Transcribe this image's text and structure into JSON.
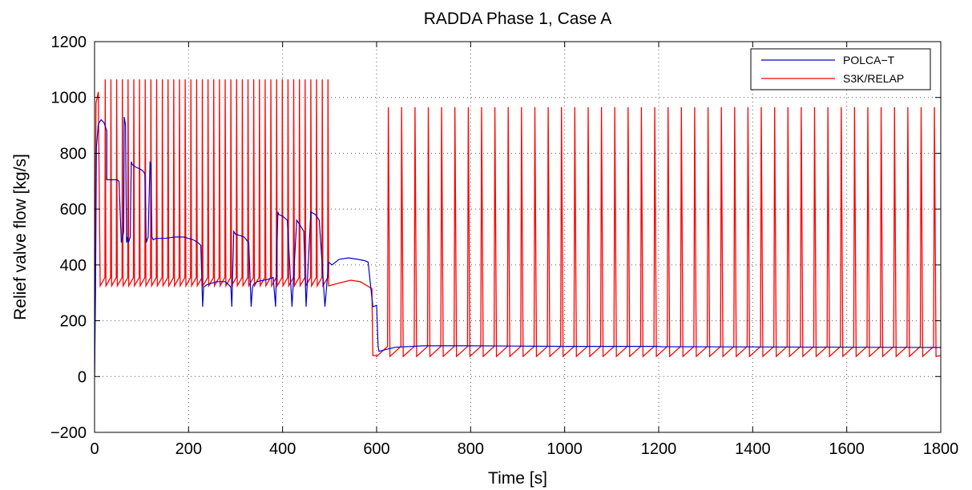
{
  "chart_data": {
    "type": "line",
    "title": "RADDA Phase 1, Case A",
    "xlabel": "Time [s]",
    "ylabel": "Relief valve flow [kg/s]",
    "xlim": [
      0,
      1800
    ],
    "ylim": [
      -200,
      1200
    ],
    "xticks": [
      0,
      200,
      400,
      600,
      800,
      1000,
      1200,
      1400,
      1600,
      1800
    ],
    "yticks": [
      -200,
      0,
      200,
      400,
      600,
      800,
      1000,
      1200
    ],
    "xtick_labels": [
      "0",
      "200",
      "400",
      "600",
      "800",
      "1000",
      "1200",
      "1400",
      "1600",
      "1800"
    ],
    "ytick_labels": [
      "−200",
      "0",
      "200",
      "400",
      "600",
      "800",
      "1000",
      "1200"
    ],
    "grid": true,
    "legend_position": "top-right",
    "series": [
      {
        "name": "POLCA−T",
        "color": "#0000cc",
        "x": [
          0,
          2,
          4,
          8,
          14,
          20,
          26,
          26,
          48,
          52,
          57,
          60,
          62,
          63,
          66,
          68,
          70,
          72,
          74,
          76,
          78,
          80,
          88,
          95,
          100,
          104,
          107,
          110,
          114,
          118,
          120,
          122,
          125,
          130,
          150,
          170,
          190,
          210,
          220,
          226,
          230,
          232,
          240,
          260,
          278,
          285,
          290,
          292,
          296,
          298,
          300,
          310,
          318,
          328,
          333,
          336,
          338,
          345,
          360,
          372,
          380,
          385,
          390,
          392,
          400,
          410,
          420,
          430,
          438,
          445,
          450,
          460,
          470,
          478,
          490,
          498,
          505,
          520,
          540,
          560,
          575,
          582,
          592,
          600,
          603,
          605,
          615,
          640,
          700,
          800,
          1000,
          1200,
          1205,
          1400,
          1600,
          1800
        ],
        "y": [
          0,
          300,
          820,
          905,
          920,
          910,
          880,
          705,
          705,
          700,
          480,
          500,
          520,
          930,
          900,
          480,
          500,
          480,
          490,
          500,
          770,
          760,
          750,
          745,
          740,
          735,
          725,
          480,
          500,
          770,
          760,
          500,
          490,
          495,
          495,
          500,
          500,
          490,
          480,
          470,
          250,
          320,
          330,
          340,
          340,
          330,
          320,
          250,
          520,
          515,
          510,
          505,
          500,
          480,
          250,
          320,
          330,
          340,
          345,
          350,
          355,
          250,
          590,
          580,
          575,
          560,
          250,
          560,
          540,
          520,
          250,
          590,
          580,
          560,
          250,
          410,
          400,
          420,
          425,
          420,
          415,
          410,
          250,
          255,
          110,
          90,
          95,
          105,
          110,
          110,
          108,
          108,
          107,
          106,
          105,
          104
        ],
        "note_values": "approximate"
      },
      {
        "name": "S3K/RELAP",
        "color": "#ff0000",
        "cycles_phase1": {
          "count": 40,
          "t_start": 12,
          "t_end": 498,
          "peak": 1065,
          "base": 325
        },
        "transition": {
          "x": [
            498,
            520,
            545,
            565,
            590,
            592,
            600
          ],
          "y": [
            325,
            335,
            345,
            340,
            315,
            75,
            75
          ]
        },
        "cycles_phase2": {
          "count": 42,
          "t_start": 600,
          "t_end": 1790,
          "peak": 965,
          "base": 72
        },
        "last_point": {
          "x": 1800,
          "y": 75
        }
      }
    ]
  }
}
